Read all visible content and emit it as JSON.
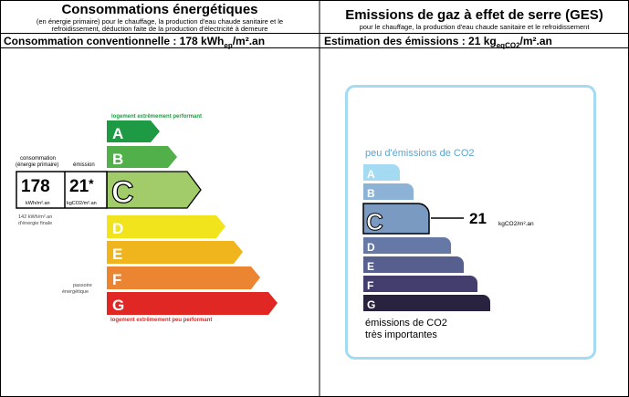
{
  "energy": {
    "title": "Consommations énergétiques",
    "subtitle_line1": "(en énergie primaire) pour le chauffage, la production d'eau chaude sanitaire et le",
    "subtitle_line2": "refroidissement, déduction faite de la production d'électricité à demeure",
    "summary_prefix": "Consommation conventionnelle : 178 kWh",
    "summary_sub": "ep",
    "summary_suffix": "/m².an",
    "top_note": "logement extrêmement performant",
    "bottom_note": "logement extrêmement peu performant",
    "col_consumption": "consommation",
    "col_consumption_2": "(énergie primaire)",
    "col_emission": "émission",
    "value_primary": "178",
    "value_emission": "21",
    "value_emission_star": "*",
    "unit_primary": "kWh/m².an",
    "unit_emission": "kgCO2/m².an",
    "final_energy_1": "142 kWh/m².an",
    "final_energy_2": "d'énergie finale",
    "passoire_1": "passoire",
    "passoire_2": "énergétique",
    "current_class": "C",
    "classes": [
      {
        "letter": "A",
        "color": "#1f9a44"
      },
      {
        "letter": "B",
        "color": "#52b04b"
      },
      {
        "letter": "C",
        "color": "#a2cc6a"
      },
      {
        "letter": "D",
        "color": "#f2e41c"
      },
      {
        "letter": "E",
        "color": "#f0b51c"
      },
      {
        "letter": "F",
        "color": "#ec8532"
      },
      {
        "letter": "G",
        "color": "#e02724"
      }
    ]
  },
  "ges": {
    "title": "Emissions de gaz à effet de serre (GES)",
    "subtitle": "pour le chauffage, la production d'eau chaude sanitaire et le refroidissement",
    "summary_prefix": "Estimation des émissions : 21 kg",
    "summary_sub": "eqCO2",
    "summary_suffix": "/m².an",
    "top_note": "peu d'émissions de CO2",
    "bottom_note_1": "émissions de CO2",
    "bottom_note_2": "très importantes",
    "value": "21",
    "unit": "kgCO2/m².an",
    "current_class": "C",
    "classes": [
      {
        "letter": "A",
        "color": "#a4dbf2"
      },
      {
        "letter": "B",
        "color": "#8cb3d6"
      },
      {
        "letter": "C",
        "color": "#7b9ac1"
      },
      {
        "letter": "D",
        "color": "#6679a6"
      },
      {
        "letter": "E",
        "color": "#575f8e"
      },
      {
        "letter": "F",
        "color": "#443e6f"
      },
      {
        "letter": "G",
        "color": "#2a2340"
      }
    ]
  }
}
